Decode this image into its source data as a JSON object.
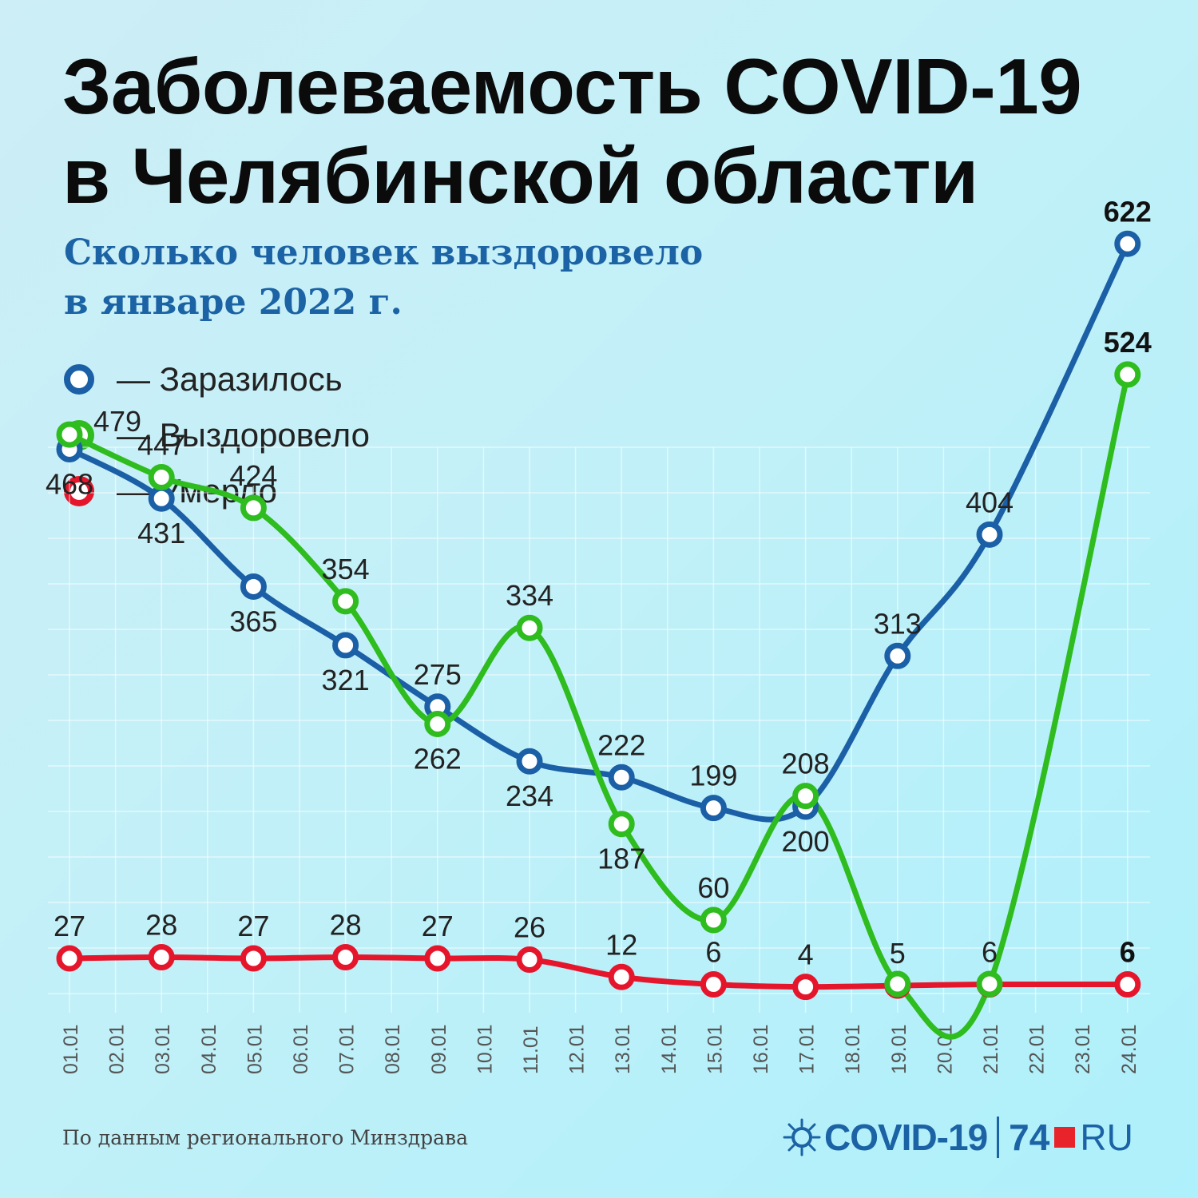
{
  "title": {
    "line1": "Заболеваемость COVID-19",
    "line2": "в Челябинской области"
  },
  "subtitle": {
    "line1": "Сколько человек выздоровело",
    "line2": "в январе 2022 г."
  },
  "legend": [
    {
      "label": "— Заразилось",
      "color": "#1b5fa6"
    },
    {
      "label": "— Выздоровело",
      "color": "#2fbc1e"
    },
    {
      "label": "— Умерло",
      "color": "#e5162c"
    }
  ],
  "source": "По данным регионального Минздрава",
  "logo": {
    "covid": "COVID-19",
    "num": "74",
    "ru": "RU",
    "accent": "#e8232a"
  },
  "chart_data": {
    "type": "line",
    "categories": [
      "01.01",
      "02.01",
      "03.01",
      "04.01",
      "05.01",
      "06.01",
      "07.01",
      "08.01",
      "09.01",
      "10.01",
      "11.01",
      "12.01",
      "13.01",
      "14.01",
      "15.01",
      "16.01",
      "17.01",
      "18.01",
      "19.01",
      "20.01",
      "21.01",
      "22.01",
      "23.01",
      "24.01"
    ],
    "series": [
      {
        "name": "Заразилось",
        "color": "#1b5fa6",
        "x": [
          "01.01",
          "03.01",
          "05.01",
          "07.01",
          "09.01",
          "11.01",
          "13.01",
          "15.01",
          "17.01",
          "19.01",
          "21.01",
          "24.01"
        ],
        "values": [
          468,
          431,
          365,
          321,
          275,
          234,
          222,
          199,
          200,
          313,
          404,
          622
        ],
        "label_position": [
          "below",
          "below",
          "below",
          "below",
          "above",
          "below",
          "above",
          "above",
          "below",
          "above",
          "above",
          "above"
        ],
        "bold_labels": [
          false,
          false,
          false,
          false,
          false,
          false,
          false,
          false,
          false,
          false,
          false,
          true
        ]
      },
      {
        "name": "Выздоровело",
        "color": "#2fbc1e",
        "x": [
          "01.01",
          "03.01",
          "05.01",
          "07.01",
          "09.01",
          "11.01",
          "13.01",
          "15.01",
          "17.01",
          "19.01",
          "21.01",
          "24.01"
        ],
        "values": [
          479,
          447,
          424,
          354,
          262,
          334,
          187,
          60,
          208,
          null,
          null,
          524
        ],
        "label_position": [
          "right",
          "above",
          "above",
          "above",
          "below",
          "above",
          "below",
          "above",
          "above",
          "none",
          "none",
          "above"
        ],
        "bold_labels": [
          false,
          false,
          false,
          false,
          false,
          false,
          false,
          false,
          false,
          false,
          false,
          true
        ]
      },
      {
        "name": "Умерло",
        "color": "#e5162c",
        "x": [
          "01.01",
          "03.01",
          "05.01",
          "07.01",
          "09.01",
          "11.01",
          "13.01",
          "15.01",
          "17.01",
          "19.01",
          "21.01",
          "24.01"
        ],
        "values": [
          27,
          28,
          27,
          28,
          27,
          26,
          12,
          6,
          4,
          5,
          6,
          6
        ],
        "label_position": [
          "above",
          "above",
          "above",
          "above",
          "above",
          "above",
          "above",
          "above",
          "above",
          "above",
          "above",
          "above"
        ],
        "bold_labels": [
          false,
          false,
          false,
          false,
          false,
          false,
          false,
          false,
          false,
          false,
          false,
          true
        ]
      }
    ],
    "grid": true,
    "legend_position": "top-left"
  }
}
